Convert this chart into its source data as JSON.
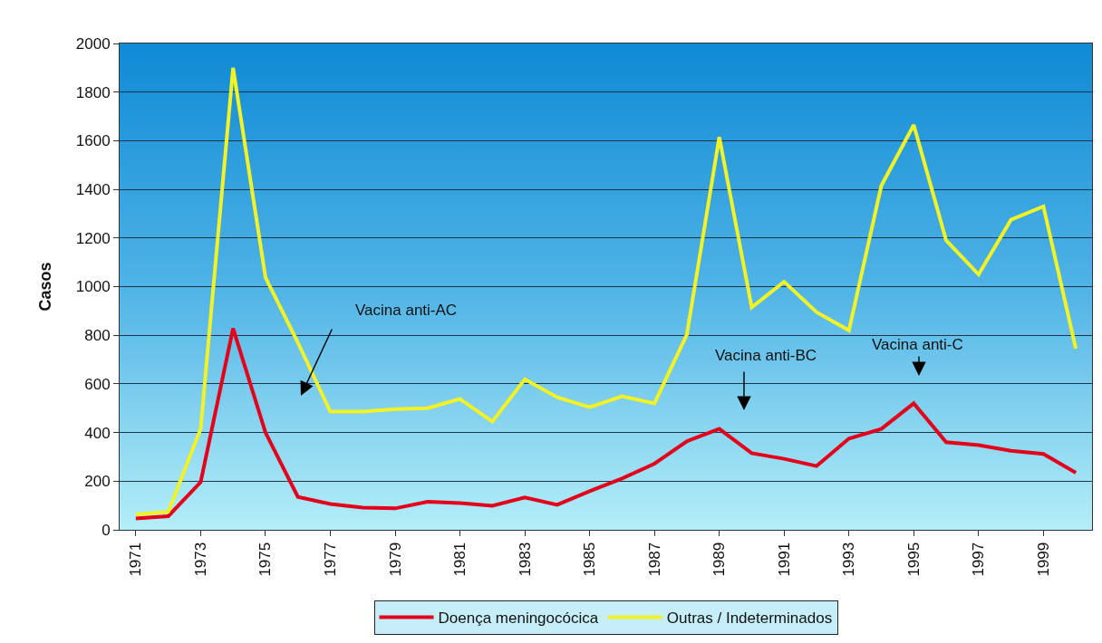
{
  "chart_data": {
    "type": "line",
    "ylabel": "Casos",
    "x": [
      1971,
      1972,
      1973,
      1974,
      1975,
      1976,
      1977,
      1978,
      1979,
      1980,
      1981,
      1982,
      1983,
      1984,
      1985,
      1986,
      1987,
      1988,
      1989,
      1990,
      1991,
      1992,
      1993,
      1994,
      1995,
      1996,
      1997,
      1998,
      1999,
      2000
    ],
    "xlim": [
      1970.5,
      2000.5
    ],
    "xticks": [
      1971,
      1973,
      1975,
      1977,
      1979,
      1981,
      1983,
      1985,
      1987,
      1989,
      1991,
      1993,
      1995,
      1997,
      1999
    ],
    "ylim": [
      0,
      2000
    ],
    "yticks": [
      0,
      200,
      400,
      600,
      800,
      1000,
      1200,
      1400,
      1600,
      1800,
      2000
    ],
    "grid": "y",
    "legend": "bottom",
    "series": [
      {
        "name": "Doença meningocócica",
        "color": "#e3001b",
        "values": [
          47,
          56,
          196,
          828,
          400,
          135,
          106,
          91,
          88,
          115,
          110,
          99,
          133,
          103,
          159,
          211,
          272,
          364,
          415,
          315,
          292,
          262,
          375,
          415,
          520,
          360,
          348,
          325,
          312,
          235
        ]
      },
      {
        "name": "Outras / Indeterminados",
        "color": "#f2f227",
        "values": [
          63,
          74,
          415,
          1900,
          1038,
          770,
          486,
          486,
          496,
          500,
          538,
          445,
          619,
          545,
          504,
          549,
          520,
          803,
          1615,
          915,
          1020,
          895,
          820,
          1415,
          1665,
          1190,
          1050,
          1275,
          1330,
          745
        ]
      }
    ],
    "annotations": [
      "Vacina anti-AC",
      "Vacina anti-BC",
      "Vacina anti-C"
    ]
  }
}
